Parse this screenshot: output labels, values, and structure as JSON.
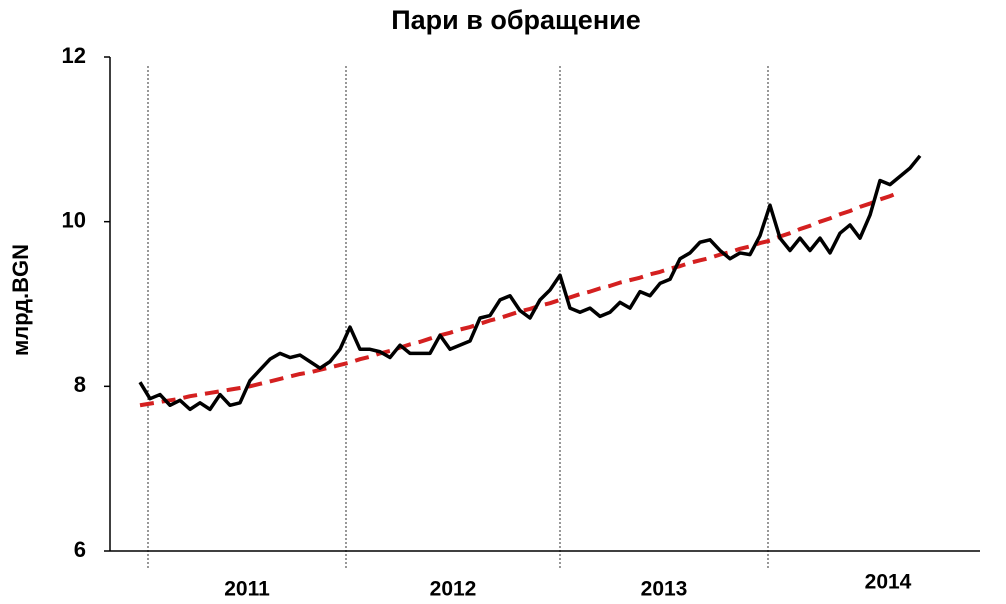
{
  "chart_data": {
    "type": "line",
    "title": "Пари в обращение",
    "y_label": "млрд.BGN",
    "x_labels": [
      "2011",
      "2012",
      "2013",
      "2014"
    ],
    "ylim": [
      6,
      12
    ],
    "yticks": [
      6,
      8,
      10,
      12
    ],
    "series": [
      {
        "color": "#000000",
        "values": [
          8.05,
          7.85,
          7.9,
          7.77,
          7.83,
          7.72,
          7.8,
          7.72,
          7.9,
          7.77,
          7.8,
          8.07,
          8.2,
          8.33,
          8.4,
          8.35,
          8.38,
          8.3,
          8.22,
          8.3,
          8.45,
          8.72,
          8.45,
          8.45,
          8.42,
          8.35,
          8.5,
          8.4,
          8.4,
          8.4,
          8.62,
          8.45,
          8.5,
          8.55,
          8.83,
          8.86,
          9.05,
          9.1,
          8.92,
          8.83,
          9.05,
          9.17,
          9.35,
          8.95,
          8.9,
          8.95,
          8.85,
          8.9,
          9.02,
          8.95,
          9.15,
          9.1,
          9.25,
          9.3,
          9.55,
          9.62,
          9.75,
          9.78,
          9.65,
          9.55,
          9.62,
          9.6,
          9.83,
          10.2,
          9.8,
          9.65,
          9.8,
          9.65,
          9.8,
          9.62,
          9.86,
          9.96,
          9.8,
          10.08,
          10.5,
          10.45,
          10.55,
          10.65,
          10.8
        ]
      },
      {
        "color": "#d42020",
        "dashed": true,
        "values": [
          7.77,
          7.79,
          7.81,
          7.83,
          7.85,
          7.88,
          7.9,
          7.92,
          7.94,
          7.96,
          7.98,
          8.0,
          8.03,
          8.06,
          8.09,
          8.12,
          8.15,
          8.17,
          8.2,
          8.23,
          8.26,
          8.29,
          8.33,
          8.36,
          8.4,
          8.43,
          8.47,
          8.51,
          8.54,
          8.58,
          8.62,
          8.65,
          8.69,
          8.72,
          8.76,
          8.8,
          8.83,
          8.87,
          8.91,
          8.94,
          8.98,
          9.01,
          9.05,
          9.08,
          9.12,
          9.15,
          9.19,
          9.22,
          9.26,
          9.29,
          9.32,
          9.36,
          9.39,
          9.43,
          9.46,
          9.5,
          9.53,
          9.56,
          9.6,
          9.63,
          9.67,
          9.7,
          9.74,
          9.77,
          9.82,
          9.86,
          9.91,
          9.95,
          10.0,
          10.04,
          10.09,
          10.13,
          10.18,
          10.22,
          10.27,
          10.31,
          10.36,
          null,
          null
        ]
      }
    ]
  }
}
